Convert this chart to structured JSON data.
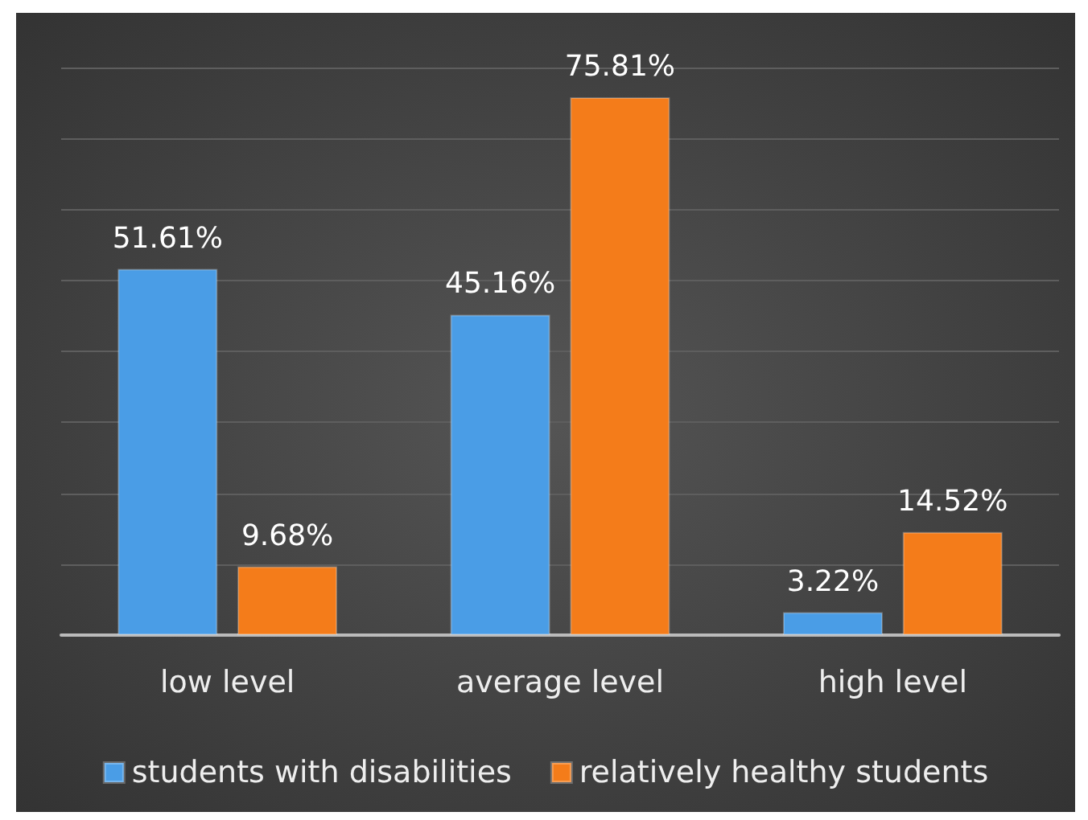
{
  "chart_data": {
    "type": "bar",
    "categories": [
      "low level",
      "average level",
      "high level"
    ],
    "series": [
      {
        "name": "students with disabilities",
        "color": "#4a9de6",
        "values": [
          51.61,
          45.16,
          3.22
        ],
        "value_labels": [
          "51.61%",
          "45.16%",
          "3.22%"
        ]
      },
      {
        "name": "relatively healthy students",
        "color": "#f47c1a",
        "values": [
          9.68,
          75.81,
          14.52
        ],
        "value_labels": [
          "9.68%",
          "75.81%",
          "14.52%"
        ]
      }
    ],
    "ylim": [
      0,
      80
    ],
    "yticks": [
      {
        "value": 0,
        "label": null
      },
      {
        "value": 10,
        "label": null
      },
      {
        "value": 20,
        "label": null
      },
      {
        "value": 30,
        "label": null
      },
      {
        "value": 40,
        "label": null
      },
      {
        "value": 50,
        "label": null
      },
      {
        "value": 60,
        "label": null
      },
      {
        "value": 70,
        "label": null
      },
      {
        "value": 80,
        "label": null
      }
    ],
    "tick_labels": "x",
    "grid": "y",
    "legend": "bottom"
  }
}
